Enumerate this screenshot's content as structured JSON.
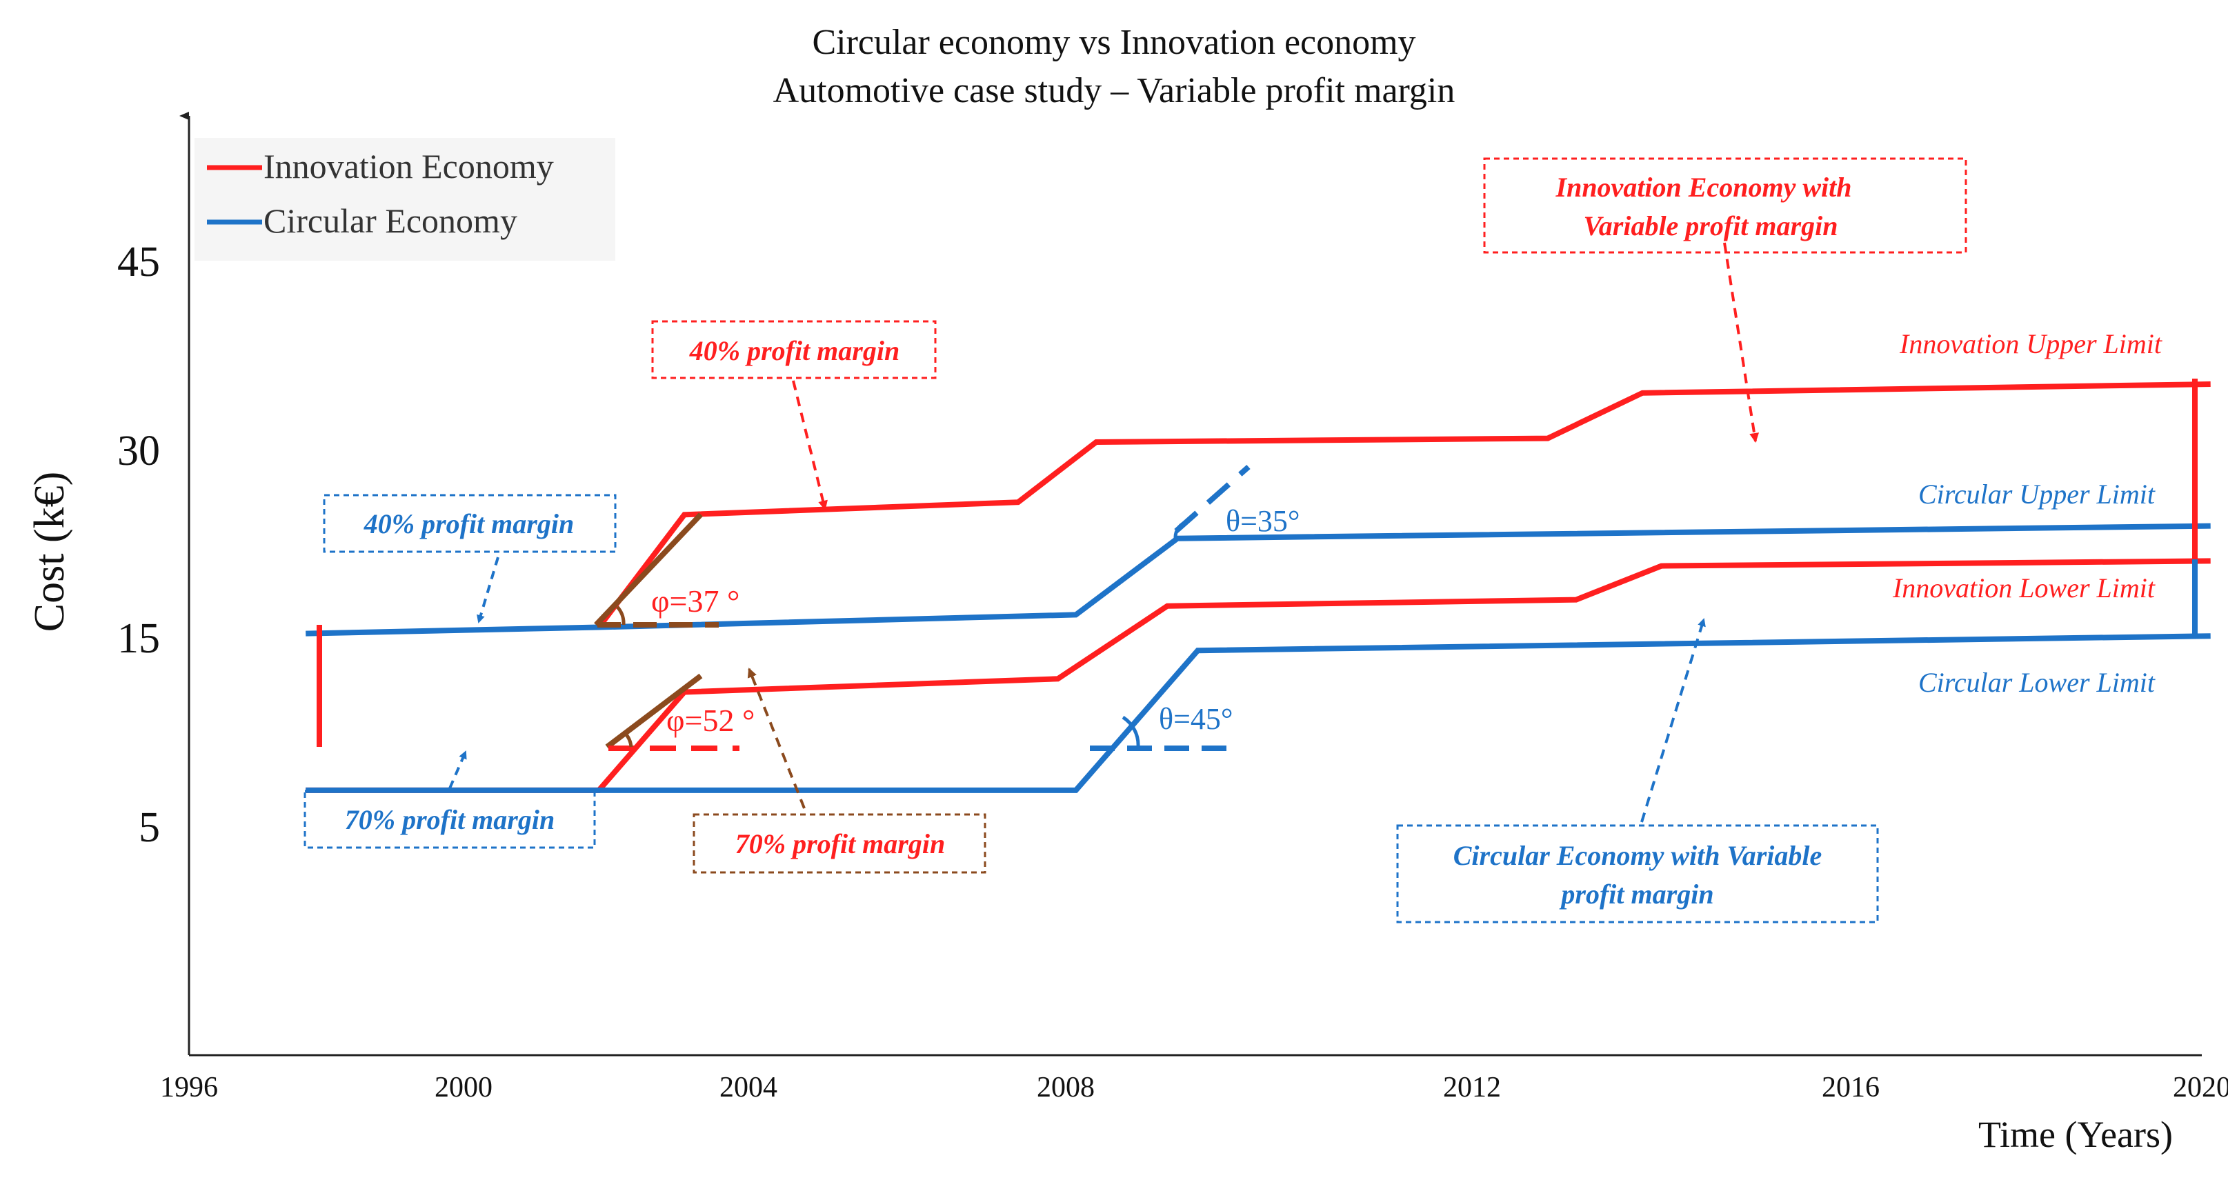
{
  "chart_data": {
    "type": "line",
    "title": "Circular economy vs Innovation economy",
    "subtitle": "Automotive case study – Variable profit margin",
    "xlabel": "Time (Years)",
    "ylabel": "Cost (k€)",
    "x_ticks": [
      1996,
      2000,
      2004,
      2008,
      2012,
      2016,
      2020
    ],
    "y_ticks": [
      5,
      15,
      30,
      45
    ],
    "legend": [
      {
        "name": "Innovation Economy",
        "color": "#ff1f1f"
      },
      {
        "name": "Circular Economy",
        "color": "#1e73c8"
      }
    ],
    "colors": {
      "innovation": "#ff1f1f",
      "circular": "#1e73c8",
      "brown": "#8b4a1e"
    },
    "series": [
      {
        "name": "Innovation Upper Limit",
        "color": "#ff1f1f",
        "points": [
          [
            2001.9,
            15.8
          ],
          [
            2003.1,
            24.8
          ],
          [
            2007.4,
            25.8
          ],
          [
            2008.3,
            30.6
          ],
          [
            2012.8,
            30.9
          ],
          [
            2013.8,
            34.5
          ],
          [
            2020.1,
            35.2
          ]
        ]
      },
      {
        "name": "Innovation Lower Limit",
        "color": "#ff1f1f",
        "points": [
          [
            1997.7,
            6.9
          ],
          [
            2001.9,
            6.9
          ],
          [
            2003.1,
            12.1
          ],
          [
            2007.9,
            12.8
          ],
          [
            2009.0,
            17.5
          ],
          [
            2013.1,
            18.0
          ],
          [
            2014.0,
            20.7
          ],
          [
            2020.1,
            21.1
          ]
        ]
      },
      {
        "name": "Circular Upper Limit",
        "color": "#1e73c8",
        "points": [
          [
            1997.7,
            15.3
          ],
          [
            2001.9,
            15.8
          ],
          [
            2008.1,
            16.8
          ],
          [
            2009.1,
            22.9
          ],
          [
            2020.1,
            23.9
          ]
        ]
      },
      {
        "name": "Circular Lower Limit",
        "color": "#1e73c8",
        "points": [
          [
            1997.7,
            6.9
          ],
          [
            2008.1,
            6.9
          ],
          [
            2009.3,
            14.3
          ],
          [
            2020.1,
            15.1
          ]
        ]
      }
    ],
    "annotations": {
      "inno_profit_variable": [
        "Innovation Economy with",
        "Variable profit margin"
      ],
      "circ_profit_variable": [
        "Circular Economy with Variable",
        "profit margin"
      ],
      "red_40": "40% profit margin",
      "blue_40": "40% profit margin",
      "blue_70": "70% profit margin",
      "brown_70": "70% profit margin",
      "inno_upper": "Innovation Upper Limit",
      "circ_upper": "Circular Upper Limit",
      "inno_lower": "Innovation Lower Limit",
      "circ_lower": "Circular Lower Limit",
      "phi37": "φ=37 °",
      "phi52": "φ=52 °",
      "theta35": "θ=35°",
      "theta45": "θ=45°"
    }
  }
}
